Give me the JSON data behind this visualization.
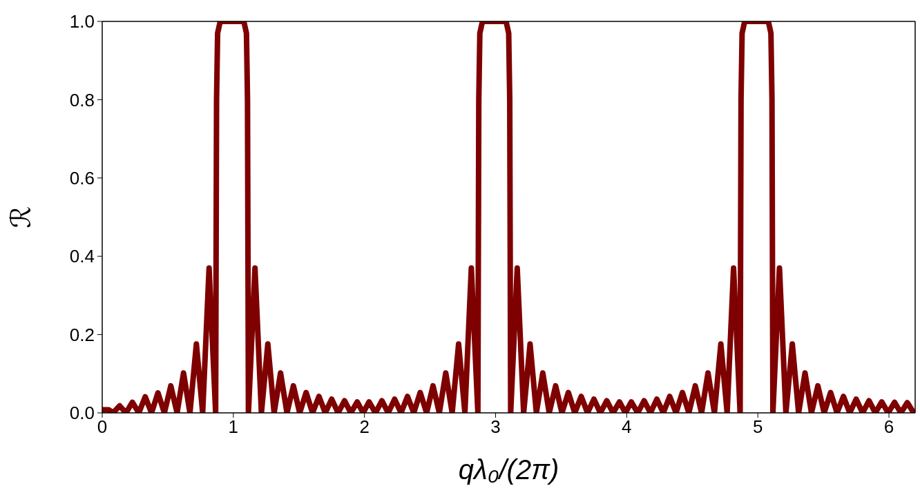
{
  "chart_data": {
    "type": "line",
    "xlabel": "qλ₀/(2π)",
    "ylabel": "ℛ",
    "xlim": [
      0,
      6.2
    ],
    "ylim": [
      0,
      1
    ],
    "xticks": [
      0,
      1,
      2,
      3,
      4,
      5,
      6
    ],
    "yticks": [
      {
        "value": 0,
        "label": "0.0"
      },
      {
        "value": 0.2,
        "label": "0.2"
      },
      {
        "value": 0.4,
        "label": "0.4"
      },
      {
        "value": 0.6,
        "label": "0.6"
      },
      {
        "value": 0.8,
        "label": "0.8"
      },
      {
        "value": 1,
        "label": "1.0"
      }
    ],
    "x": [
      0,
      0.05,
      0.083,
      0.133,
      0.181,
      0.23,
      0.279,
      0.328,
      0.376,
      0.425,
      0.474,
      0.523,
      0.571,
      0.62,
      0.669,
      0.718,
      0.766,
      0.815,
      0.865,
      0.872,
      0.88,
      0.9,
      0.99,
      1.08,
      1.1,
      1.108,
      1.115,
      1.165,
      1.214,
      1.263,
      1.311,
      1.36,
      1.409,
      1.458,
      1.506,
      1.555,
      1.604,
      1.653,
      1.701,
      1.75,
      1.799,
      1.848,
      1.896,
      1.945,
      1.99,
      2.035,
      2.084,
      2.133,
      2.181,
      2.23,
      2.279,
      2.328,
      2.376,
      2.425,
      2.474,
      2.523,
      2.571,
      2.62,
      2.669,
      2.718,
      2.766,
      2.815,
      2.865,
      2.872,
      2.88,
      2.9,
      2.99,
      3.08,
      3.1,
      3.108,
      3.115,
      3.165,
      3.214,
      3.263,
      3.311,
      3.36,
      3.409,
      3.458,
      3.506,
      3.555,
      3.604,
      3.653,
      3.701,
      3.75,
      3.799,
      3.848,
      3.896,
      3.945,
      3.99,
      4.035,
      4.084,
      4.133,
      4.181,
      4.23,
      4.279,
      4.328,
      4.376,
      4.425,
      4.474,
      4.523,
      4.571,
      4.62,
      4.669,
      4.718,
      4.766,
      4.815,
      4.865,
      4.872,
      4.88,
      4.9,
      4.99,
      5.08,
      5.1,
      5.108,
      5.115,
      5.165,
      5.214,
      5.263,
      5.311,
      5.36,
      5.409,
      5.458,
      5.506,
      5.555,
      5.604,
      5.653,
      5.701,
      5.75,
      5.799,
      5.848,
      5.896,
      5.945,
      5.994,
      6.043,
      6.091,
      6.14,
      6.189,
      6.2
    ],
    "series": [
      {
        "color": "#7f0000",
        "values": [
          0.008,
          0.008,
          0,
          0.018,
          0,
          0.027,
          0,
          0.041,
          0,
          0.051,
          0,
          0.069,
          0,
          0.102,
          0,
          0.176,
          0,
          0.37,
          0,
          0.8,
          0.97,
          1,
          1,
          1,
          0.97,
          0.8,
          0,
          0.37,
          0,
          0.176,
          0,
          0.102,
          0,
          0.069,
          0,
          0.052,
          0,
          0.042,
          0,
          0.035,
          0,
          0.031,
          0,
          0.028,
          0,
          0.028,
          0,
          0.031,
          0,
          0.035,
          0,
          0.042,
          0,
          0.052,
          0,
          0.069,
          0,
          0.102,
          0,
          0.176,
          0,
          0.37,
          0,
          0.8,
          0.97,
          1,
          1,
          1,
          0.97,
          0.8,
          0,
          0.37,
          0,
          0.176,
          0,
          0.102,
          0,
          0.069,
          0,
          0.052,
          0,
          0.042,
          0,
          0.035,
          0,
          0.031,
          0,
          0.028,
          0,
          0.028,
          0,
          0.031,
          0,
          0.035,
          0,
          0.042,
          0,
          0.052,
          0,
          0.069,
          0,
          0.102,
          0,
          0.176,
          0,
          0.37,
          0,
          0.8,
          0.97,
          1,
          1,
          1,
          0.97,
          0.8,
          0,
          0.37,
          0,
          0.176,
          0,
          0.102,
          0,
          0.069,
          0,
          0.052,
          0,
          0.042,
          0,
          0.035,
          0,
          0.031,
          0,
          0.028,
          0,
          0.027,
          0,
          0.026,
          0,
          0.005
        ]
      }
    ]
  }
}
